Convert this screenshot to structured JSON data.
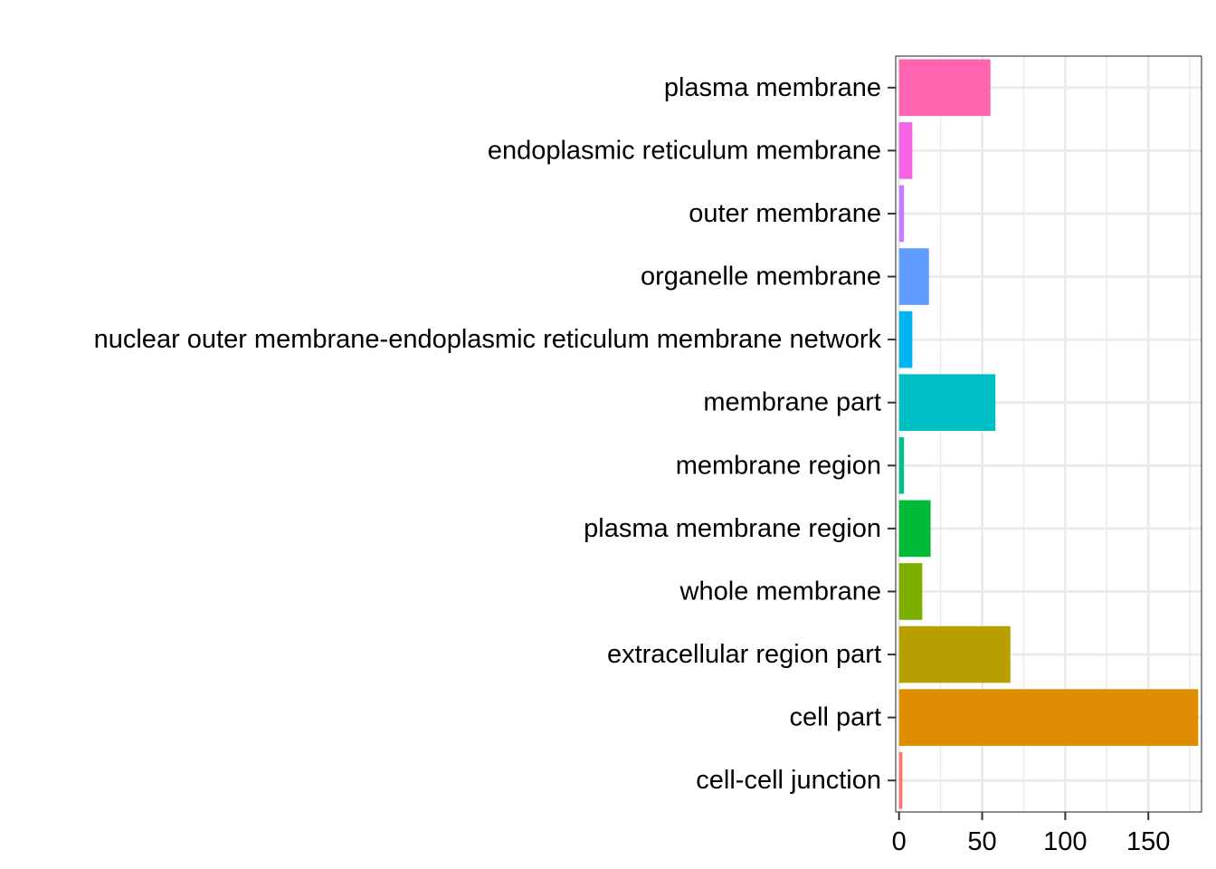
{
  "chart_data": {
    "type": "bar",
    "orientation": "horizontal",
    "title": "",
    "xlabel": "",
    "ylabel": "",
    "categories": [
      "cell-cell junction",
      "cell part",
      "extracellular region part",
      "whole membrane",
      "plasma membrane region",
      "membrane region",
      "membrane part",
      "nuclear outer membrane-endoplasmic reticulum membrane network",
      "organelle membrane",
      "outer membrane",
      "endoplasmic reticulum membrane",
      "plasma membrane"
    ],
    "values": [
      2,
      180,
      67,
      14,
      19,
      3,
      58,
      8,
      18,
      3,
      8,
      55
    ],
    "colors": [
      "#F8766D",
      "#DE8C00",
      "#B79F00",
      "#7CAE00",
      "#00BA38",
      "#00C08B",
      "#00BFC4",
      "#00B4F0",
      "#619CFF",
      "#C77CFF",
      "#F564E3",
      "#FF64B0"
    ],
    "xlim": [
      -2,
      182
    ],
    "xticks": [
      0,
      50,
      100,
      150
    ],
    "xtick_labels": [
      "0",
      "50",
      "100",
      "150"
    ],
    "grid": true,
    "legend": "none"
  }
}
